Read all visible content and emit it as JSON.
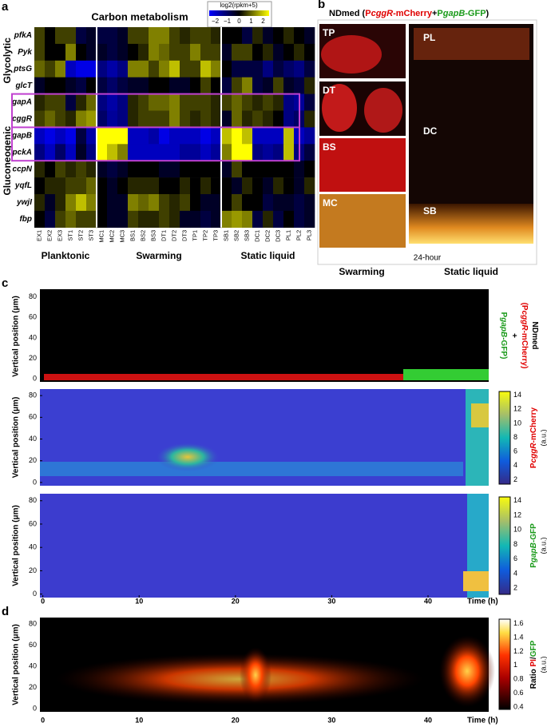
{
  "panels": {
    "a": {
      "label": "a",
      "title": "Carbon metabolism",
      "colorbar_label": "log2(rpkm+5)",
      "clim": [
        -2.5,
        2.5
      ],
      "colorbar_ticks": [
        {
          "value": -2,
          "label": "−2"
        },
        {
          "value": -1,
          "label": "−1"
        },
        0,
        1,
        2
      ],
      "side_labels": [
        "Glycolytic",
        "Gluconeogenic"
      ],
      "genes": [
        "pfkA",
        "Pyk",
        "ptsG",
        "glcT",
        "gapA",
        "cggR",
        "gapB",
        "pckA",
        "ccpN",
        "yqfL",
        "ywjI",
        "fbp"
      ],
      "columns": [
        "EX1",
        "EX2",
        "EX3",
        "ST1",
        "ST2",
        "ST3",
        "MC1",
        "MC2",
        "MC3",
        "BS1",
        "BS2",
        "BS3",
        "DT1",
        "DT2",
        "DT3",
        "TP1",
        "TP2",
        "TP3",
        "SB1",
        "SB2",
        "SB3",
        "DC1",
        "DC2",
        "DC3",
        "PL1",
        "PL2",
        "PL3"
      ],
      "groups": [
        "Planktonic",
        "Swarming",
        "Static liquid"
      ],
      "values": [
        [
          0.5,
          0,
          0.5,
          0.5,
          -0.5,
          -0.3,
          -0.5,
          -0.5,
          -0.3,
          0.5,
          0.5,
          1,
          1,
          0.5,
          0.3,
          0.5,
          0.5,
          0.3,
          0,
          0,
          -0.5,
          0.3,
          -0.3,
          0,
          0.3,
          0,
          -0.3
        ],
        [
          0.5,
          0,
          0,
          1,
          0,
          -0.3,
          -0.3,
          -0.5,
          -0.3,
          0,
          0.3,
          1,
          0.8,
          0.5,
          0.5,
          1,
          0.5,
          0.5,
          -0.3,
          0.5,
          0.5,
          0,
          0.3,
          -0.3,
          0,
          0.3,
          0
        ],
        [
          0.8,
          0.5,
          1,
          -1.5,
          -1.8,
          -1.8,
          -1,
          -1.3,
          -1,
          1,
          1,
          0.5,
          1,
          1.5,
          0.5,
          0.5,
          1.5,
          1,
          0,
          -0.5,
          -0.5,
          -0.5,
          -1,
          -0.5,
          -0.8,
          -1,
          -0.5
        ],
        [
          -0.3,
          0,
          0,
          -0.3,
          -0.5,
          0,
          -0.5,
          -0.8,
          -0.5,
          -0.3,
          -0.3,
          0,
          0,
          -0.3,
          -0.3,
          0,
          0.5,
          0,
          -0.5,
          0.5,
          1,
          -0.5,
          -0.3,
          0.5,
          -0.3,
          -0.5,
          0.3
        ],
        [
          0.3,
          0.5,
          0.5,
          -0.5,
          0.3,
          0.8,
          -1,
          -1.3,
          -1,
          0.3,
          0.5,
          0.8,
          0.8,
          1,
          0.5,
          0.5,
          0.5,
          0.3,
          0.5,
          0.8,
          0.5,
          0.3,
          0.5,
          0.3,
          -1,
          -1.2,
          -0.5
        ],
        [
          0.5,
          0.8,
          0.5,
          0.3,
          1,
          1.2,
          -0.8,
          -1.2,
          -1,
          0.3,
          0.5,
          0.5,
          0.5,
          1,
          0.5,
          0.3,
          0.5,
          0.3,
          -0.3,
          0.8,
          0.3,
          0.5,
          0.3,
          0,
          -1,
          -0.8,
          0.3
        ],
        [
          -1.5,
          -1.8,
          -1.5,
          -1.8,
          -0.5,
          -1.3,
          2,
          2,
          2,
          -1.5,
          -1.5,
          -1.3,
          -1.8,
          -1.5,
          -1.5,
          -1.5,
          -1.8,
          -1.5,
          1.5,
          2,
          1.5,
          -1.5,
          -1.5,
          -1.5,
          1.5,
          -1.5,
          -1.2
        ],
        [
          -1,
          -1.5,
          -0.8,
          -1.5,
          -0.3,
          -1,
          2,
          1.5,
          1,
          -1.5,
          -1.5,
          -1.5,
          -1.5,
          -1.5,
          -1.2,
          -1.2,
          -1.5,
          -1.2,
          1,
          2,
          2,
          -1,
          -1.2,
          -1,
          1.5,
          -1,
          -0.5
        ],
        [
          0.3,
          0,
          0.5,
          0.3,
          0.5,
          0.3,
          -0.3,
          -0.5,
          -0.3,
          0,
          0,
          0,
          -0.3,
          -0.3,
          0,
          0,
          0,
          0,
          -0.3,
          0.5,
          0,
          0,
          0,
          0,
          0,
          -0.3,
          0
        ],
        [
          0,
          0.3,
          0.3,
          0.5,
          0.5,
          0.8,
          0,
          -0.3,
          0,
          0.3,
          0.3,
          0.3,
          0,
          0,
          0.3,
          0,
          0.3,
          0,
          0,
          -0.3,
          0.3,
          0,
          -0.3,
          0.3,
          0,
          -0.3,
          0.3
        ],
        [
          0.3,
          -0.3,
          0.3,
          1,
          1.5,
          1,
          0,
          -0.3,
          -0.3,
          1,
          0.8,
          1,
          0.5,
          0.3,
          0.5,
          0,
          -0.3,
          -0.3,
          0,
          0.5,
          0,
          0,
          -0.5,
          -0.3,
          -0.3,
          -0.5,
          -0.3
        ],
        [
          0,
          -0.5,
          0.5,
          0.8,
          0.5,
          0.5,
          0,
          -0.3,
          -0.3,
          0.5,
          0.3,
          0.3,
          0.5,
          0.3,
          -0.3,
          -0.3,
          -0.5,
          -0.3,
          1,
          1.2,
          1,
          -0.5,
          0.3,
          -0.5,
          0,
          -0.5,
          -0.3
        ]
      ]
    },
    "b": {
      "label": "b",
      "title": [
        "NDmed (",
        "P",
        "cggR",
        "-mCherry",
        "+",
        "P",
        "gapB",
        "-GFP",
        ")"
      ],
      "swarming_images": [
        "TP",
        "DT",
        "BS",
        "MC"
      ],
      "static_images": [
        "PL",
        "DC",
        "SB"
      ],
      "time": "24-hour",
      "groups": [
        "Swarming",
        "Static liquid"
      ]
    },
    "c": {
      "label": "c",
      "ylabel": "Vertical position (μm)",
      "xlabel": "Time (h)",
      "xlim": [
        -0.3,
        46.3
      ],
      "xticks": [
        0,
        10,
        20,
        30,
        40
      ],
      "ylim": [
        -3,
        86
      ],
      "yticks": [
        0,
        20,
        40,
        60,
        80
      ],
      "top_legend": [
        "NDmed",
        "(P",
        "cggR",
        "-mCherry",
        ")",
        "+",
        "P",
        "gapB",
        "-GFP)"
      ],
      "mcherry_label": [
        "P",
        "cggR",
        "-mCherry"
      ],
      "gfp_label": [
        "P",
        "gapB",
        "-GFP"
      ],
      "unit": "(a.u.)",
      "clim": [
        1.6,
        14.3
      ],
      "cticks": [
        2,
        4,
        6,
        8,
        10,
        12,
        14
      ]
    },
    "d": {
      "label": "d",
      "ylabel": "Vertical position (μm)",
      "xlabel": "Time (h)",
      "xlim": [
        -0.3,
        46.3
      ],
      "xticks": [
        0,
        10,
        20,
        30,
        40
      ],
      "ylim": [
        -3,
        86
      ],
      "yticks": [
        0,
        20,
        40,
        60,
        80
      ],
      "colorbar_label": [
        "Ratio ",
        "PI",
        "/",
        "GFP"
      ],
      "unit": "(a.u.)",
      "clim": [
        0.38,
        1.64
      ],
      "cticks": [
        0.4,
        0.6,
        0.8,
        {
          "value": 1,
          "label": "1"
        },
        1.2,
        1.4,
        1.6
      ]
    }
  }
}
